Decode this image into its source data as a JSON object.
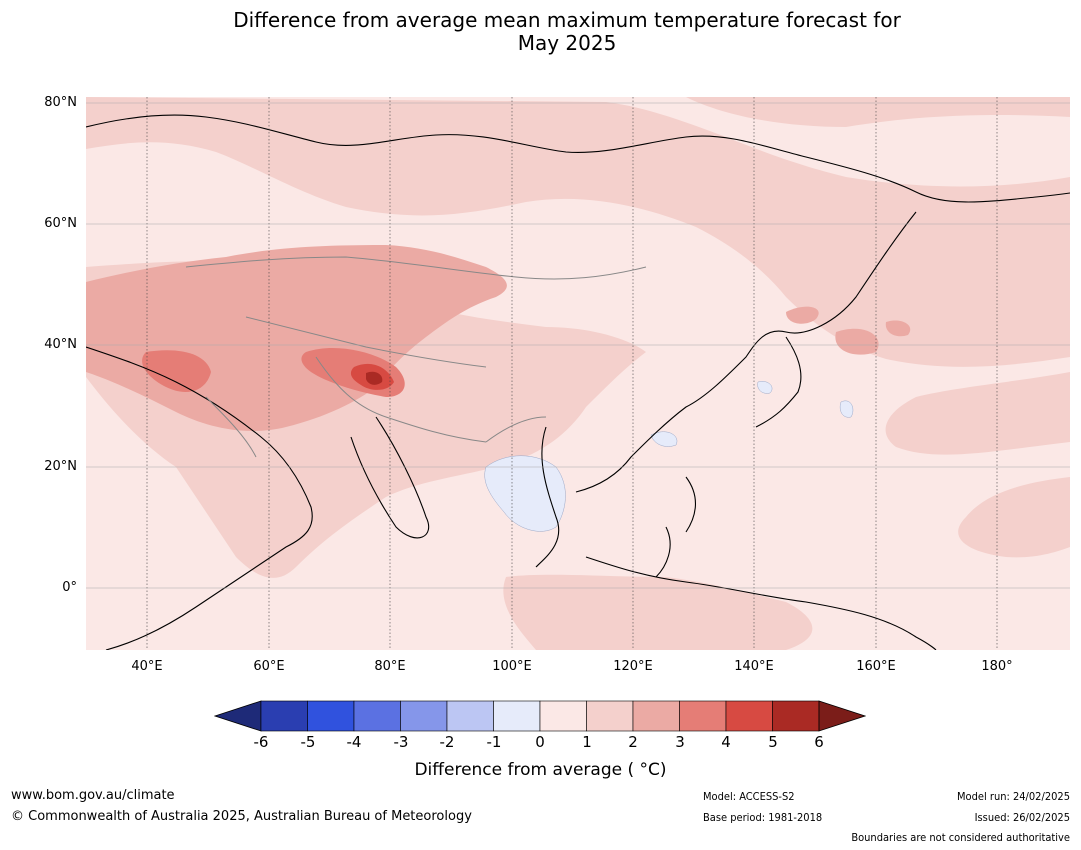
{
  "title": {
    "line1": "Difference from average mean maximum temperature forecast for",
    "line2": "May 2025"
  },
  "axes": {
    "lat_labels": [
      "80°N",
      "60°N",
      "40°N",
      "20°N",
      "0°"
    ],
    "lon_labels": [
      "40°E",
      "60°E",
      "80°E",
      "100°E",
      "120°E",
      "140°E",
      "160°E",
      "180°"
    ]
  },
  "colorbar": {
    "tick_labels": [
      "-6",
      "-5",
      "-4",
      "-3",
      "-2",
      "-1",
      "0",
      "1",
      "2",
      "3",
      "4",
      "5",
      "6"
    ],
    "colors": [
      "#1e2a78",
      "#2a3eb1",
      "#3052de",
      "#5b71e2",
      "#8596ea",
      "#bcc6f3",
      "#e6ebfa",
      "#fbe8e6",
      "#f4d0cc",
      "#ebaaa4",
      "#e57d76",
      "#d74a42",
      "#aa2a24",
      "#7b1d19"
    ],
    "label": "Difference from average ( °C)"
  },
  "footer": {
    "website": "www.bom.gov.au/climate",
    "copyright": "© Commonwealth of Australia 2025, Australian Bureau of Meteorology",
    "model": "Model: ACCESS-S2",
    "base_period": "Base period: 1981-2018",
    "model_run": "Model run: 24/02/2025",
    "issued": "Issued: 26/02/2025",
    "disclaimer": "Boundaries are not considered authoritative"
  }
}
